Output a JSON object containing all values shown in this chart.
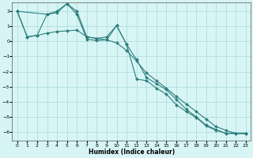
{
  "xlabel": "Humidex (Indice chaleur)",
  "bg_color": "#d8f5f5",
  "grid_color": "#b0dede",
  "line_color": "#2d7d7d",
  "ylim": [
    -6.6,
    2.6
  ],
  "xlim": [
    -0.5,
    23.5
  ],
  "yticks": [
    2,
    1,
    0,
    -1,
    -2,
    -3,
    -4,
    -5,
    -6
  ],
  "xticks": [
    0,
    1,
    2,
    3,
    4,
    5,
    6,
    7,
    8,
    9,
    10,
    11,
    12,
    13,
    14,
    15,
    16,
    17,
    18,
    19,
    20,
    21,
    22,
    23
  ],
  "series": [
    {
      "x": [
        0,
        1,
        2,
        3,
        4,
        5,
        6,
        7,
        8,
        9,
        10,
        11,
        12,
        13,
        14,
        15,
        16,
        17,
        18,
        19,
        20,
        21,
        22,
        23
      ],
      "y": [
        2.0,
        0.3,
        0.4,
        1.8,
        1.9,
        2.5,
        1.8,
        0.15,
        0.05,
        0.1,
        1.05,
        -0.2,
        -1.2,
        -2.4,
        -2.8,
        -3.2,
        -3.85,
        -4.5,
        -5.0,
        -5.55,
        -5.85,
        -6.1,
        -6.1,
        -6.1
      ]
    },
    {
      "x": [
        0,
        1,
        2,
        3,
        4,
        5,
        6,
        7,
        8,
        9,
        10,
        11,
        12,
        13,
        14,
        15,
        16,
        17,
        18,
        19,
        20,
        21,
        22,
        23
      ],
      "y": [
        2.0,
        0.3,
        0.4,
        0.55,
        0.65,
        0.7,
        0.75,
        0.3,
        0.2,
        0.1,
        -0.1,
        -0.6,
        -1.3,
        -2.1,
        -2.6,
        -3.1,
        -3.65,
        -4.15,
        -4.65,
        -5.15,
        -5.65,
        -5.9,
        -6.1,
        -6.1
      ]
    },
    {
      "x": [
        0,
        3,
        4,
        5,
        6,
        7,
        8,
        9,
        10,
        11,
        12,
        13,
        14,
        15,
        16,
        17,
        18,
        19,
        20,
        21,
        22,
        23
      ],
      "y": [
        2.0,
        1.8,
        2.0,
        2.5,
        2.0,
        0.3,
        0.2,
        0.3,
        1.05,
        -0.2,
        -2.5,
        -2.6,
        -3.1,
        -3.5,
        -4.2,
        -4.65,
        -5.05,
        -5.6,
        -5.9,
        -6.1,
        -6.1,
        -6.1
      ]
    }
  ]
}
